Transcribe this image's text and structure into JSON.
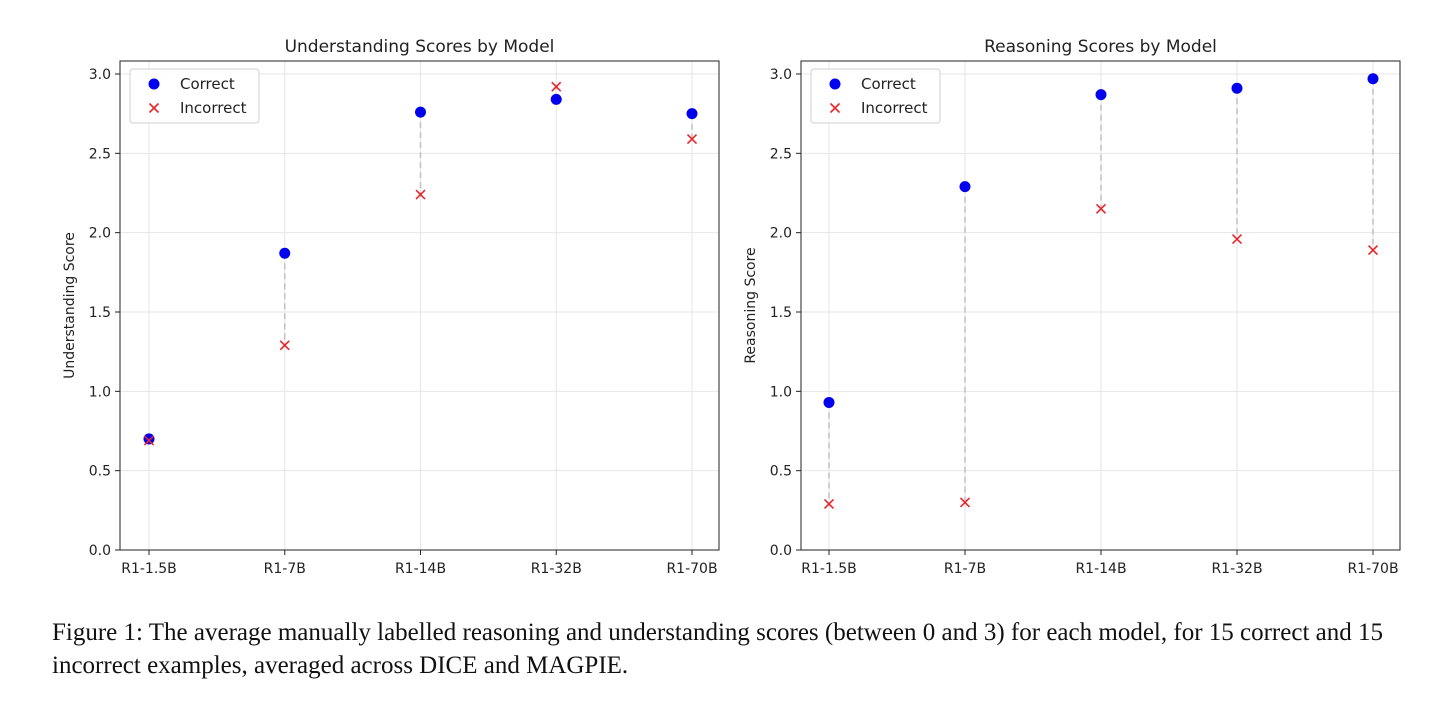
{
  "chart_data": [
    {
      "type": "scatter",
      "title": "Understanding Scores by Model",
      "xlabel": "",
      "ylabel": "Understanding Score",
      "categories": [
        "R1-1.5B",
        "R1-7B",
        "R1-14B",
        "R1-32B",
        "R1-70B"
      ],
      "ylim": [
        0,
        3.0
      ],
      "yticks": [
        0.0,
        0.5,
        1.0,
        1.5,
        2.0,
        2.5,
        3.0
      ],
      "ytick_labels": [
        "0.0",
        "0.5",
        "1.0",
        "1.5",
        "2.0",
        "2.5",
        "3.0"
      ],
      "grid": true,
      "legend_position": "top-left",
      "series": [
        {
          "name": "Correct",
          "marker": "circle",
          "color": "#0000ee",
          "values": [
            0.7,
            1.87,
            2.76,
            2.84,
            2.75
          ]
        },
        {
          "name": "Incorrect",
          "marker": "x",
          "color": "#e8262a",
          "values": [
            0.69,
            1.29,
            2.24,
            2.92,
            2.59
          ]
        }
      ]
    },
    {
      "type": "scatter",
      "title": "Reasoning Scores by Model",
      "xlabel": "",
      "ylabel": "Reasoning Score",
      "categories": [
        "R1-1.5B",
        "R1-7B",
        "R1-14B",
        "R1-32B",
        "R1-70B"
      ],
      "ylim": [
        0,
        3.0
      ],
      "yticks": [
        0.0,
        0.5,
        1.0,
        1.5,
        2.0,
        2.5,
        3.0
      ],
      "ytick_labels": [
        "0.0",
        "0.5",
        "1.0",
        "1.5",
        "2.0",
        "2.5",
        "3.0"
      ],
      "grid": true,
      "legend_position": "top-left",
      "series": [
        {
          "name": "Correct",
          "marker": "circle",
          "color": "#0000ee",
          "values": [
            0.93,
            2.29,
            2.87,
            2.91,
            2.97
          ]
        },
        {
          "name": "Incorrect",
          "marker": "x",
          "color": "#e8262a",
          "values": [
            0.29,
            0.3,
            2.15,
            1.96,
            1.89
          ]
        }
      ]
    }
  ],
  "caption": "Figure 1: The average manually labelled reasoning and understanding scores (between 0 and 3) for each model, for 15 correct and 15 incorrect examples, averaged across DICE and MAGPIE."
}
